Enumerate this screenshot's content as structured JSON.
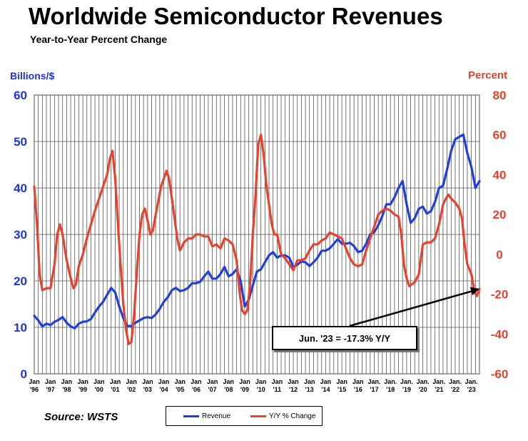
{
  "title": "Worldwide Semiconductor Revenues",
  "subtitle": "Year-to-Year Percent Change",
  "source": "Source: WSTS",
  "annotation": "Jun. '23 = -17.3% Y/Y",
  "colors": {
    "revenue": "#1f3ee0",
    "yoy": "#e8412c",
    "grid": "#555555",
    "left_axis": "#2233dd",
    "right_axis": "#e8412c"
  },
  "chart_data": {
    "type": "line",
    "title": "Worldwide Semiconductor Revenues",
    "subtitle": "Year-to-Year Percent Change",
    "y_left": {
      "label": "Billions/$",
      "range": [
        0,
        60
      ],
      "ticks": [
        0,
        10,
        20,
        30,
        40,
        50,
        60
      ]
    },
    "y_right": {
      "label": "Percent",
      "range": [
        -60,
        80
      ],
      "ticks": [
        -60,
        -40,
        -20,
        0,
        20,
        40,
        60,
        80
      ]
    },
    "x_range": [
      1996,
      2023.5
    ],
    "x_tick_labels": [
      [
        "Jan",
        "'96"
      ],
      [
        "Jan",
        "'97"
      ],
      [
        "Jan",
        "'98"
      ],
      [
        "Jan",
        "'99"
      ],
      [
        "Jan",
        "'00"
      ],
      [
        "Jan",
        "'01"
      ],
      [
        "Jan",
        "'02"
      ],
      [
        "Jan",
        "'03"
      ],
      [
        "Jan",
        "'04"
      ],
      [
        "Jan",
        "'05"
      ],
      [
        "Jan",
        "'06"
      ],
      [
        "Jan",
        "'07"
      ],
      [
        "Jan",
        "'08"
      ],
      [
        "Jan",
        "'09"
      ],
      [
        "Jan",
        "'10"
      ],
      [
        "Jan",
        "'11"
      ],
      [
        "Jan",
        "'12"
      ],
      [
        "Jan",
        "'13"
      ],
      [
        "Jan",
        "'14"
      ],
      [
        "Jan",
        "'15"
      ],
      [
        "Jan",
        "'16"
      ],
      [
        "Jan.",
        "'17"
      ],
      [
        "Jan.",
        "'18"
      ],
      [
        "Jan.",
        "'19"
      ],
      [
        "Jan.",
        "'20"
      ],
      [
        "Jan.",
        "'21"
      ],
      [
        "Jan.",
        "'22"
      ],
      [
        "Jan.",
        "'23"
      ]
    ],
    "grid": true,
    "legend_position": "bottom-center",
    "series": [
      {
        "name": "Revenue",
        "axis": "left",
        "points": [
          [
            1996.0,
            12.5
          ],
          [
            1996.25,
            11.5
          ],
          [
            1996.5,
            10.2
          ],
          [
            1996.75,
            10.8
          ],
          [
            1997.0,
            10.5
          ],
          [
            1997.25,
            11.2
          ],
          [
            1997.5,
            11.6
          ],
          [
            1997.75,
            12.2
          ],
          [
            1998.0,
            11.0
          ],
          [
            1998.25,
            10.2
          ],
          [
            1998.5,
            9.8
          ],
          [
            1998.75,
            10.8
          ],
          [
            1999.0,
            11.2
          ],
          [
            1999.25,
            11.3
          ],
          [
            1999.5,
            11.8
          ],
          [
            1999.75,
            13.2
          ],
          [
            2000.0,
            14.5
          ],
          [
            2000.25,
            15.5
          ],
          [
            2000.5,
            17.0
          ],
          [
            2000.75,
            18.5
          ],
          [
            2001.0,
            17.5
          ],
          [
            2001.25,
            14.5
          ],
          [
            2001.5,
            12.0
          ],
          [
            2001.75,
            10.3
          ],
          [
            2002.0,
            10.3
          ],
          [
            2002.25,
            11.0
          ],
          [
            2002.5,
            11.5
          ],
          [
            2002.75,
            12.0
          ],
          [
            2003.0,
            12.2
          ],
          [
            2003.25,
            12.0
          ],
          [
            2003.5,
            12.8
          ],
          [
            2003.75,
            14.0
          ],
          [
            2004.0,
            15.5
          ],
          [
            2004.25,
            16.5
          ],
          [
            2004.5,
            18.0
          ],
          [
            2004.75,
            18.5
          ],
          [
            2005.0,
            17.8
          ],
          [
            2005.25,
            18.0
          ],
          [
            2005.5,
            18.5
          ],
          [
            2005.75,
            19.5
          ],
          [
            2006.0,
            19.5
          ],
          [
            2006.25,
            19.8
          ],
          [
            2006.5,
            21.0
          ],
          [
            2006.75,
            22.0
          ],
          [
            2007.0,
            20.5
          ],
          [
            2007.25,
            20.5
          ],
          [
            2007.5,
            21.5
          ],
          [
            2007.75,
            23.0
          ],
          [
            2008.0,
            21.0
          ],
          [
            2008.25,
            21.5
          ],
          [
            2008.5,
            22.5
          ],
          [
            2008.75,
            20.0
          ],
          [
            2009.0,
            14.5
          ],
          [
            2009.25,
            16.0
          ],
          [
            2009.5,
            19.0
          ],
          [
            2009.75,
            22.0
          ],
          [
            2010.0,
            22.5
          ],
          [
            2010.25,
            24.0
          ],
          [
            2010.5,
            25.5
          ],
          [
            2010.75,
            26.2
          ],
          [
            2011.0,
            25.0
          ],
          [
            2011.25,
            25.5
          ],
          [
            2011.5,
            25.5
          ],
          [
            2011.75,
            25.0
          ],
          [
            2012.0,
            23.0
          ],
          [
            2012.25,
            23.5
          ],
          [
            2012.5,
            24.2
          ],
          [
            2012.75,
            24.0
          ],
          [
            2013.0,
            23.2
          ],
          [
            2013.25,
            24.0
          ],
          [
            2013.5,
            25.0
          ],
          [
            2013.75,
            26.5
          ],
          [
            2014.0,
            26.5
          ],
          [
            2014.25,
            27.0
          ],
          [
            2014.5,
            28.0
          ],
          [
            2014.75,
            29.0
          ],
          [
            2015.0,
            28.0
          ],
          [
            2015.25,
            28.0
          ],
          [
            2015.5,
            28.2
          ],
          [
            2015.75,
            27.5
          ],
          [
            2016.0,
            26.2
          ],
          [
            2016.25,
            26.5
          ],
          [
            2016.5,
            28.0
          ],
          [
            2016.75,
            30.0
          ],
          [
            2017.0,
            30.5
          ],
          [
            2017.25,
            32.0
          ],
          [
            2017.5,
            34.0
          ],
          [
            2017.75,
            36.5
          ],
          [
            2018.0,
            36.5
          ],
          [
            2018.25,
            38.0
          ],
          [
            2018.5,
            40.0
          ],
          [
            2018.75,
            41.5
          ],
          [
            2019.0,
            36.5
          ],
          [
            2019.25,
            32.5
          ],
          [
            2019.5,
            33.5
          ],
          [
            2019.75,
            35.5
          ],
          [
            2020.0,
            36.0
          ],
          [
            2020.25,
            34.5
          ],
          [
            2020.5,
            35.0
          ],
          [
            2020.75,
            37.0
          ],
          [
            2021.0,
            40.0
          ],
          [
            2021.25,
            40.5
          ],
          [
            2021.5,
            44.0
          ],
          [
            2021.75,
            48.0
          ],
          [
            2022.0,
            50.5
          ],
          [
            2022.25,
            51.0
          ],
          [
            2022.5,
            51.5
          ],
          [
            2022.75,
            47.5
          ],
          [
            2023.0,
            44.5
          ],
          [
            2023.25,
            40.0
          ],
          [
            2023.5,
            41.5
          ]
        ]
      },
      {
        "name": "Y/Y % Change",
        "axis": "right",
        "points": [
          [
            1996.0,
            34
          ],
          [
            1996.17,
            15
          ],
          [
            1996.33,
            -10
          ],
          [
            1996.5,
            -18
          ],
          [
            1996.75,
            -17
          ],
          [
            1997.0,
            -17
          ],
          [
            1997.25,
            -5
          ],
          [
            1997.42,
            10
          ],
          [
            1997.58,
            15
          ],
          [
            1997.75,
            10
          ],
          [
            1998.0,
            -3
          ],
          [
            1998.25,
            -12
          ],
          [
            1998.42,
            -17
          ],
          [
            1998.58,
            -15
          ],
          [
            1998.75,
            -6
          ],
          [
            1999.0,
            0
          ],
          [
            1999.25,
            8
          ],
          [
            1999.5,
            15
          ],
          [
            1999.75,
            22
          ],
          [
            2000.0,
            28
          ],
          [
            2000.25,
            34
          ],
          [
            2000.5,
            40
          ],
          [
            2000.67,
            48
          ],
          [
            2000.83,
            52
          ],
          [
            2001.0,
            38
          ],
          [
            2001.17,
            15
          ],
          [
            2001.33,
            -5
          ],
          [
            2001.5,
            -25
          ],
          [
            2001.67,
            -38
          ],
          [
            2001.83,
            -45
          ],
          [
            2002.0,
            -44
          ],
          [
            2002.17,
            -30
          ],
          [
            2002.33,
            -10
          ],
          [
            2002.5,
            10
          ],
          [
            2002.67,
            20
          ],
          [
            2002.83,
            23
          ],
          [
            2003.0,
            17
          ],
          [
            2003.17,
            10
          ],
          [
            2003.33,
            12
          ],
          [
            2003.5,
            20
          ],
          [
            2003.67,
            27
          ],
          [
            2003.83,
            34
          ],
          [
            2004.0,
            38
          ],
          [
            2004.17,
            42
          ],
          [
            2004.33,
            38
          ],
          [
            2004.5,
            28
          ],
          [
            2004.67,
            18
          ],
          [
            2004.83,
            8
          ],
          [
            2005.0,
            2
          ],
          [
            2005.25,
            6
          ],
          [
            2005.5,
            8
          ],
          [
            2005.75,
            8
          ],
          [
            2006.0,
            10
          ],
          [
            2006.25,
            10
          ],
          [
            2006.5,
            9
          ],
          [
            2006.75,
            9
          ],
          [
            2007.0,
            4
          ],
          [
            2007.25,
            5
          ],
          [
            2007.5,
            3
          ],
          [
            2007.75,
            8
          ],
          [
            2008.0,
            7
          ],
          [
            2008.25,
            5
          ],
          [
            2008.5,
            -3
          ],
          [
            2008.67,
            -18
          ],
          [
            2008.83,
            -28
          ],
          [
            2009.0,
            -30
          ],
          [
            2009.17,
            -28
          ],
          [
            2009.33,
            -15
          ],
          [
            2009.5,
            10
          ],
          [
            2009.67,
            30
          ],
          [
            2009.83,
            55
          ],
          [
            2010.0,
            60
          ],
          [
            2010.17,
            50
          ],
          [
            2010.33,
            35
          ],
          [
            2010.5,
            25
          ],
          [
            2010.67,
            15
          ],
          [
            2010.83,
            10
          ],
          [
            2011.0,
            10
          ],
          [
            2011.25,
            0
          ],
          [
            2011.5,
            -2
          ],
          [
            2011.75,
            -5
          ],
          [
            2012.0,
            -8
          ],
          [
            2012.25,
            -3
          ],
          [
            2012.5,
            -3
          ],
          [
            2012.75,
            -2
          ],
          [
            2013.0,
            2
          ],
          [
            2013.25,
            5
          ],
          [
            2013.5,
            5
          ],
          [
            2013.75,
            7
          ],
          [
            2014.0,
            8
          ],
          [
            2014.25,
            11
          ],
          [
            2014.5,
            10
          ],
          [
            2014.75,
            9
          ],
          [
            2015.0,
            8
          ],
          [
            2015.25,
            3
          ],
          [
            2015.5,
            -2
          ],
          [
            2015.75,
            -5
          ],
          [
            2016.0,
            -6
          ],
          [
            2016.25,
            -5
          ],
          [
            2016.5,
            2
          ],
          [
            2016.75,
            8
          ],
          [
            2017.0,
            14
          ],
          [
            2017.25,
            20
          ],
          [
            2017.5,
            22
          ],
          [
            2017.75,
            23
          ],
          [
            2018.0,
            22
          ],
          [
            2018.25,
            20
          ],
          [
            2018.5,
            19
          ],
          [
            2018.67,
            10
          ],
          [
            2018.83,
            -5
          ],
          [
            2019.0,
            -12
          ],
          [
            2019.17,
            -16
          ],
          [
            2019.33,
            -15
          ],
          [
            2019.5,
            -14
          ],
          [
            2019.75,
            -10
          ],
          [
            2020.0,
            5
          ],
          [
            2020.25,
            6
          ],
          [
            2020.5,
            6
          ],
          [
            2020.75,
            8
          ],
          [
            2021.0,
            15
          ],
          [
            2021.25,
            25
          ],
          [
            2021.42,
            28
          ],
          [
            2021.58,
            30
          ],
          [
            2021.75,
            28
          ],
          [
            2022.0,
            26
          ],
          [
            2022.25,
            23
          ],
          [
            2022.42,
            18
          ],
          [
            2022.58,
            5
          ],
          [
            2022.75,
            -5
          ],
          [
            2023.0,
            -10
          ],
          [
            2023.17,
            -18
          ],
          [
            2023.33,
            -21
          ],
          [
            2023.5,
            -17.3
          ]
        ]
      }
    ],
    "annotation": {
      "text": "Jun. '23 = -17.3% Y/Y",
      "x": 2023.5,
      "y": -17.3,
      "axis": "right"
    }
  }
}
